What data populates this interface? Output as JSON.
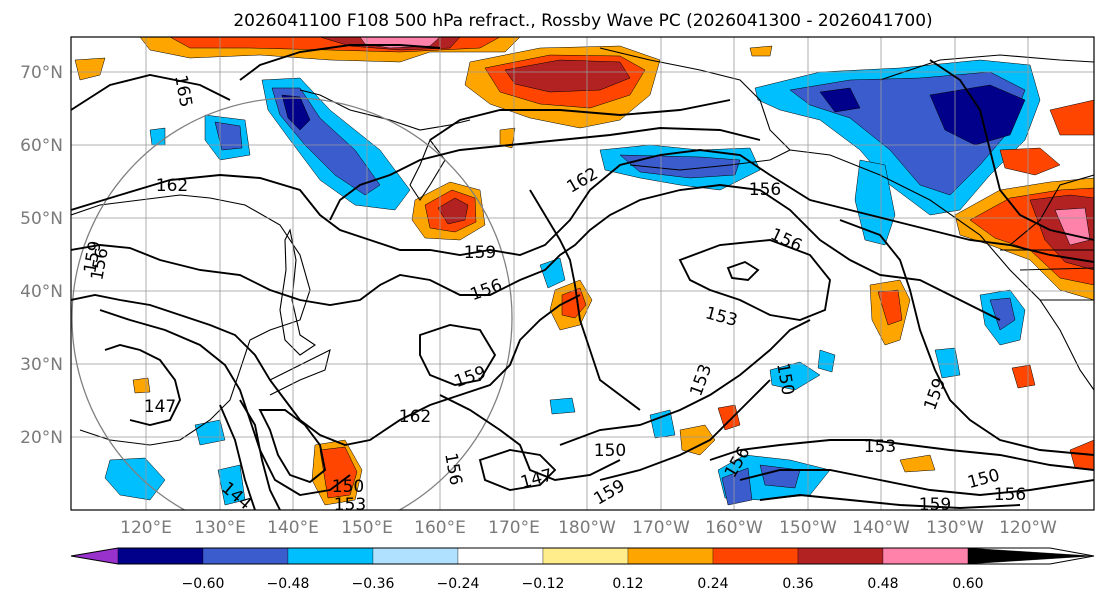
{
  "title": "2026041100 F108 500 hPa refract., Rossby Wave PC (2026041300 - 2026041700)",
  "lat_labels": [
    "70°N",
    "60°N",
    "50°N",
    "40°N",
    "30°N",
    "20°N"
  ],
  "lon_labels": [
    "120°E",
    "130°E",
    "140°E",
    "150°E",
    "160°E",
    "170°E",
    "180°W",
    "170°W",
    "160°W",
    "150°W",
    "140°W",
    "130°W",
    "120°W"
  ],
  "colorbar": {
    "tick_labels": [
      "−0.60",
      "−0.48",
      "−0.36",
      "−0.24",
      "−0.12",
      "0.12",
      "0.24",
      "0.36",
      "0.48",
      "0.60"
    ],
    "colors": [
      "#9932cc",
      "#00008b",
      "#3a5ccc",
      "#00bfff",
      "#b0e2ff",
      "#ffffff",
      "#ffec8b",
      "#ffa500",
      "#ff4500",
      "#b22222",
      "#ff82ab"
    ]
  },
  "contour_labels": [
    "165",
    "162",
    "159",
    "156",
    "153",
    "150",
    "147",
    "144",
    "162",
    "159",
    "156",
    "156",
    "153",
    "153",
    "150",
    "147",
    "159",
    "150",
    "159",
    "162",
    "156",
    "159",
    "153",
    "150",
    "156",
    "156",
    "159",
    "156"
  ]
}
